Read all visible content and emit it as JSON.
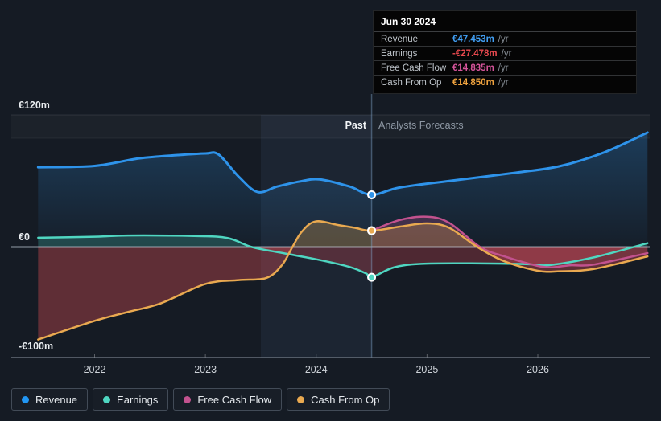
{
  "tooltip": {
    "title": "Jun 30 2024",
    "rows": [
      {
        "label": "Revenue",
        "value": "€47.453m",
        "unit": "/yr",
        "color": "#42a0f5"
      },
      {
        "label": "Earnings",
        "value": "-€27.478m",
        "unit": "/yr",
        "color": "#e8494f"
      },
      {
        "label": "Free Cash Flow",
        "value": "€14.835m",
        "unit": "/yr",
        "color": "#d4549a"
      },
      {
        "label": "Cash From Op",
        "value": "€14.850m",
        "unit": "/yr",
        "color": "#f0a33f"
      }
    ]
  },
  "header": {
    "past_label": "Past",
    "forecast_label": "Analysts Forecasts"
  },
  "legend": [
    {
      "label": "Revenue",
      "color": "#2196f3"
    },
    {
      "label": "Earnings",
      "color": "#4fd6c1"
    },
    {
      "label": "Free Cash Flow",
      "color": "#c2528e"
    },
    {
      "label": "Cash From Op",
      "color": "#e9a950"
    }
  ],
  "chart_data": {
    "type": "area",
    "unit": "€m per year",
    "x_axis": {
      "ticks": [
        2022,
        2023,
        2024,
        2025,
        2026
      ],
      "labels": [
        "2022",
        "2023",
        "2024",
        "2025",
        "2026"
      ],
      "range": [
        2021.49,
        2027.0
      ]
    },
    "y_axis": {
      "ticks": [
        {
          "label": "€120m",
          "value": 120
        },
        {
          "label": "€0",
          "value": 0
        },
        {
          "label": "-€100m",
          "value": -100
        }
      ],
      "range": [
        -100,
        120
      ]
    },
    "divider": {
      "x": 2024.5,
      "date": "Jun 30 2024",
      "highlight_band": [
        2023.5,
        2024.5
      ]
    },
    "series": [
      {
        "name": "revenue",
        "label": "Revenue",
        "color": "#2e93ea",
        "width": 3,
        "fill_pos": "url(#gradRev)",
        "fill_neg": "none",
        "points": [
          [
            2021.49,
            72.5
          ],
          [
            2022,
            73.7
          ],
          [
            2022.4,
            80.5
          ],
          [
            2022.75,
            83.5
          ],
          [
            2023,
            85
          ],
          [
            2023.12,
            84
          ],
          [
            2023.3,
            64
          ],
          [
            2023.47,
            50
          ],
          [
            2023.65,
            55
          ],
          [
            2023.85,
            59.5
          ],
          [
            2024.03,
            61.5
          ],
          [
            2024.3,
            55
          ],
          [
            2024.5,
            47.453
          ],
          [
            2024.75,
            54
          ],
          [
            2025.2,
            60
          ],
          [
            2025.8,
            67.5
          ],
          [
            2026.2,
            73.5
          ],
          [
            2026.6,
            86
          ],
          [
            2026.99,
            104
          ]
        ]
      },
      {
        "name": "earnings",
        "label": "Earnings",
        "color": "#4fd6c1",
        "width": 2.5,
        "fill_pos": "rgba(79,214,193,0.22)",
        "fill_neg": "rgba(213,74,84,0.30)",
        "points": [
          [
            2021.49,
            8.5
          ],
          [
            2022,
            9.4
          ],
          [
            2022.3,
            10.5
          ],
          [
            2022.9,
            10
          ],
          [
            2023.2,
            8.2
          ],
          [
            2023.42,
            0
          ],
          [
            2023.7,
            -5.5
          ],
          [
            2024.03,
            -11.7
          ],
          [
            2024.3,
            -18
          ],
          [
            2024.45,
            -24
          ],
          [
            2024.5,
            -27.478
          ],
          [
            2024.7,
            -18.5
          ],
          [
            2024.95,
            -15.2
          ],
          [
            2025.4,
            -14.8
          ],
          [
            2025.9,
            -15.5
          ],
          [
            2026.1,
            -16.4
          ],
          [
            2026.5,
            -9.5
          ],
          [
            2026.99,
            3.5
          ]
        ]
      },
      {
        "name": "free-cash-flow",
        "label": "Free Cash Flow",
        "color": "#c2528e",
        "width": 2.5,
        "fill_pos": "rgba(194,82,142,0.25)",
        "fill_neg": "rgba(194,82,120,0.20)",
        "points": [
          [
            2024.5,
            14.835
          ],
          [
            2024.75,
            24.5
          ],
          [
            2025,
            27.5
          ],
          [
            2025.2,
            22
          ],
          [
            2025.48,
            0
          ],
          [
            2025.7,
            -8.5
          ],
          [
            2026.05,
            -18
          ],
          [
            2026.3,
            -16.5
          ],
          [
            2026.5,
            -16
          ],
          [
            2026.99,
            -5.5
          ]
        ]
      },
      {
        "name": "cash-from-op",
        "label": "Cash From Op",
        "color": "#e9a950",
        "width": 2.5,
        "fill_pos": "rgba(233,169,80,0.28)",
        "fill_neg": "rgba(208,76,82,0.40)",
        "points": [
          [
            2021.49,
            -84
          ],
          [
            2022,
            -67
          ],
          [
            2022.3,
            -59
          ],
          [
            2022.6,
            -51
          ],
          [
            2023,
            -33.5
          ],
          [
            2023.3,
            -30
          ],
          [
            2023.55,
            -28
          ],
          [
            2023.69,
            -16.5
          ],
          [
            2023.785,
            0
          ],
          [
            2023.87,
            14
          ],
          [
            2023.995,
            23.3
          ],
          [
            2024.2,
            20
          ],
          [
            2024.35,
            17.5
          ],
          [
            2024.5,
            14.85
          ],
          [
            2024.75,
            18.5
          ],
          [
            2025,
            21.5
          ],
          [
            2025.2,
            17.5
          ],
          [
            2025.455,
            0
          ],
          [
            2025.7,
            -13
          ],
          [
            2026,
            -21.5
          ],
          [
            2026.2,
            -22
          ],
          [
            2026.5,
            -20
          ],
          [
            2026.99,
            -8.5
          ]
        ]
      }
    ],
    "divider_values": {
      "revenue": 47.453,
      "earnings": -27.478,
      "free-cash-flow": 14.835,
      "cash-from-op": 14.85
    }
  }
}
